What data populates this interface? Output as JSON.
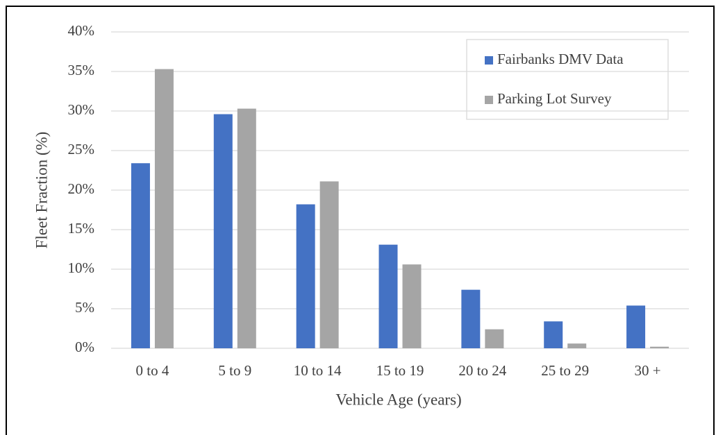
{
  "chart_data": {
    "type": "bar",
    "categories": [
      "0 to 4",
      "5 to 9",
      "10 to 14",
      "15 to 19",
      "20 to 24",
      "25 to 29",
      "30 +"
    ],
    "series": [
      {
        "name": "Fairbanks DMV Data",
        "color": "#4472c4",
        "values": [
          23.4,
          29.6,
          18.2,
          13.1,
          7.4,
          3.4,
          5.4
        ]
      },
      {
        "name": "Parking Lot Survey",
        "color": "#a5a5a5",
        "values": [
          35.3,
          30.3,
          21.1,
          10.6,
          2.4,
          0.6,
          0.2
        ]
      }
    ],
    "x_label": "Vehicle Age (years)",
    "y_label": "Fleet Fraction (%)",
    "ylim": [
      0,
      40
    ],
    "yticks": [
      {
        "value": 0,
        "label": "0%"
      },
      {
        "value": 5,
        "label": "5%"
      },
      {
        "value": 10,
        "label": "10%"
      },
      {
        "value": 15,
        "label": "15%"
      },
      {
        "value": 20,
        "label": "20%"
      },
      {
        "value": 25,
        "label": "25%"
      },
      {
        "value": 30,
        "label": "30%"
      },
      {
        "value": 35,
        "label": "35%"
      },
      {
        "value": 40,
        "label": "40%"
      }
    ],
    "grid": true,
    "legend": "upper right"
  }
}
